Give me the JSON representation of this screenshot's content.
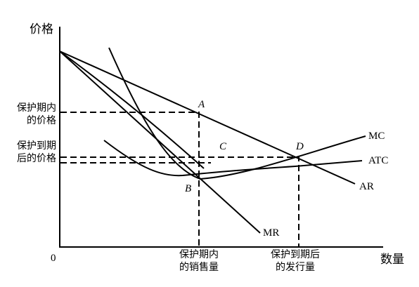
{
  "axes": {
    "y_label": "价格",
    "x_label": "数量",
    "origin": "0"
  },
  "y_labels": [
    [
      "保护期内",
      "的价格"
    ],
    [
      "保护到期",
      "后的价格"
    ]
  ],
  "x_labels": [
    [
      "保护期内",
      "的销售量"
    ],
    [
      "保护到期后",
      "的发行量"
    ]
  ],
  "points": [
    "A",
    "B",
    "C",
    "D"
  ],
  "curves": [
    "MC",
    "ATC",
    "AR",
    "MR"
  ]
}
